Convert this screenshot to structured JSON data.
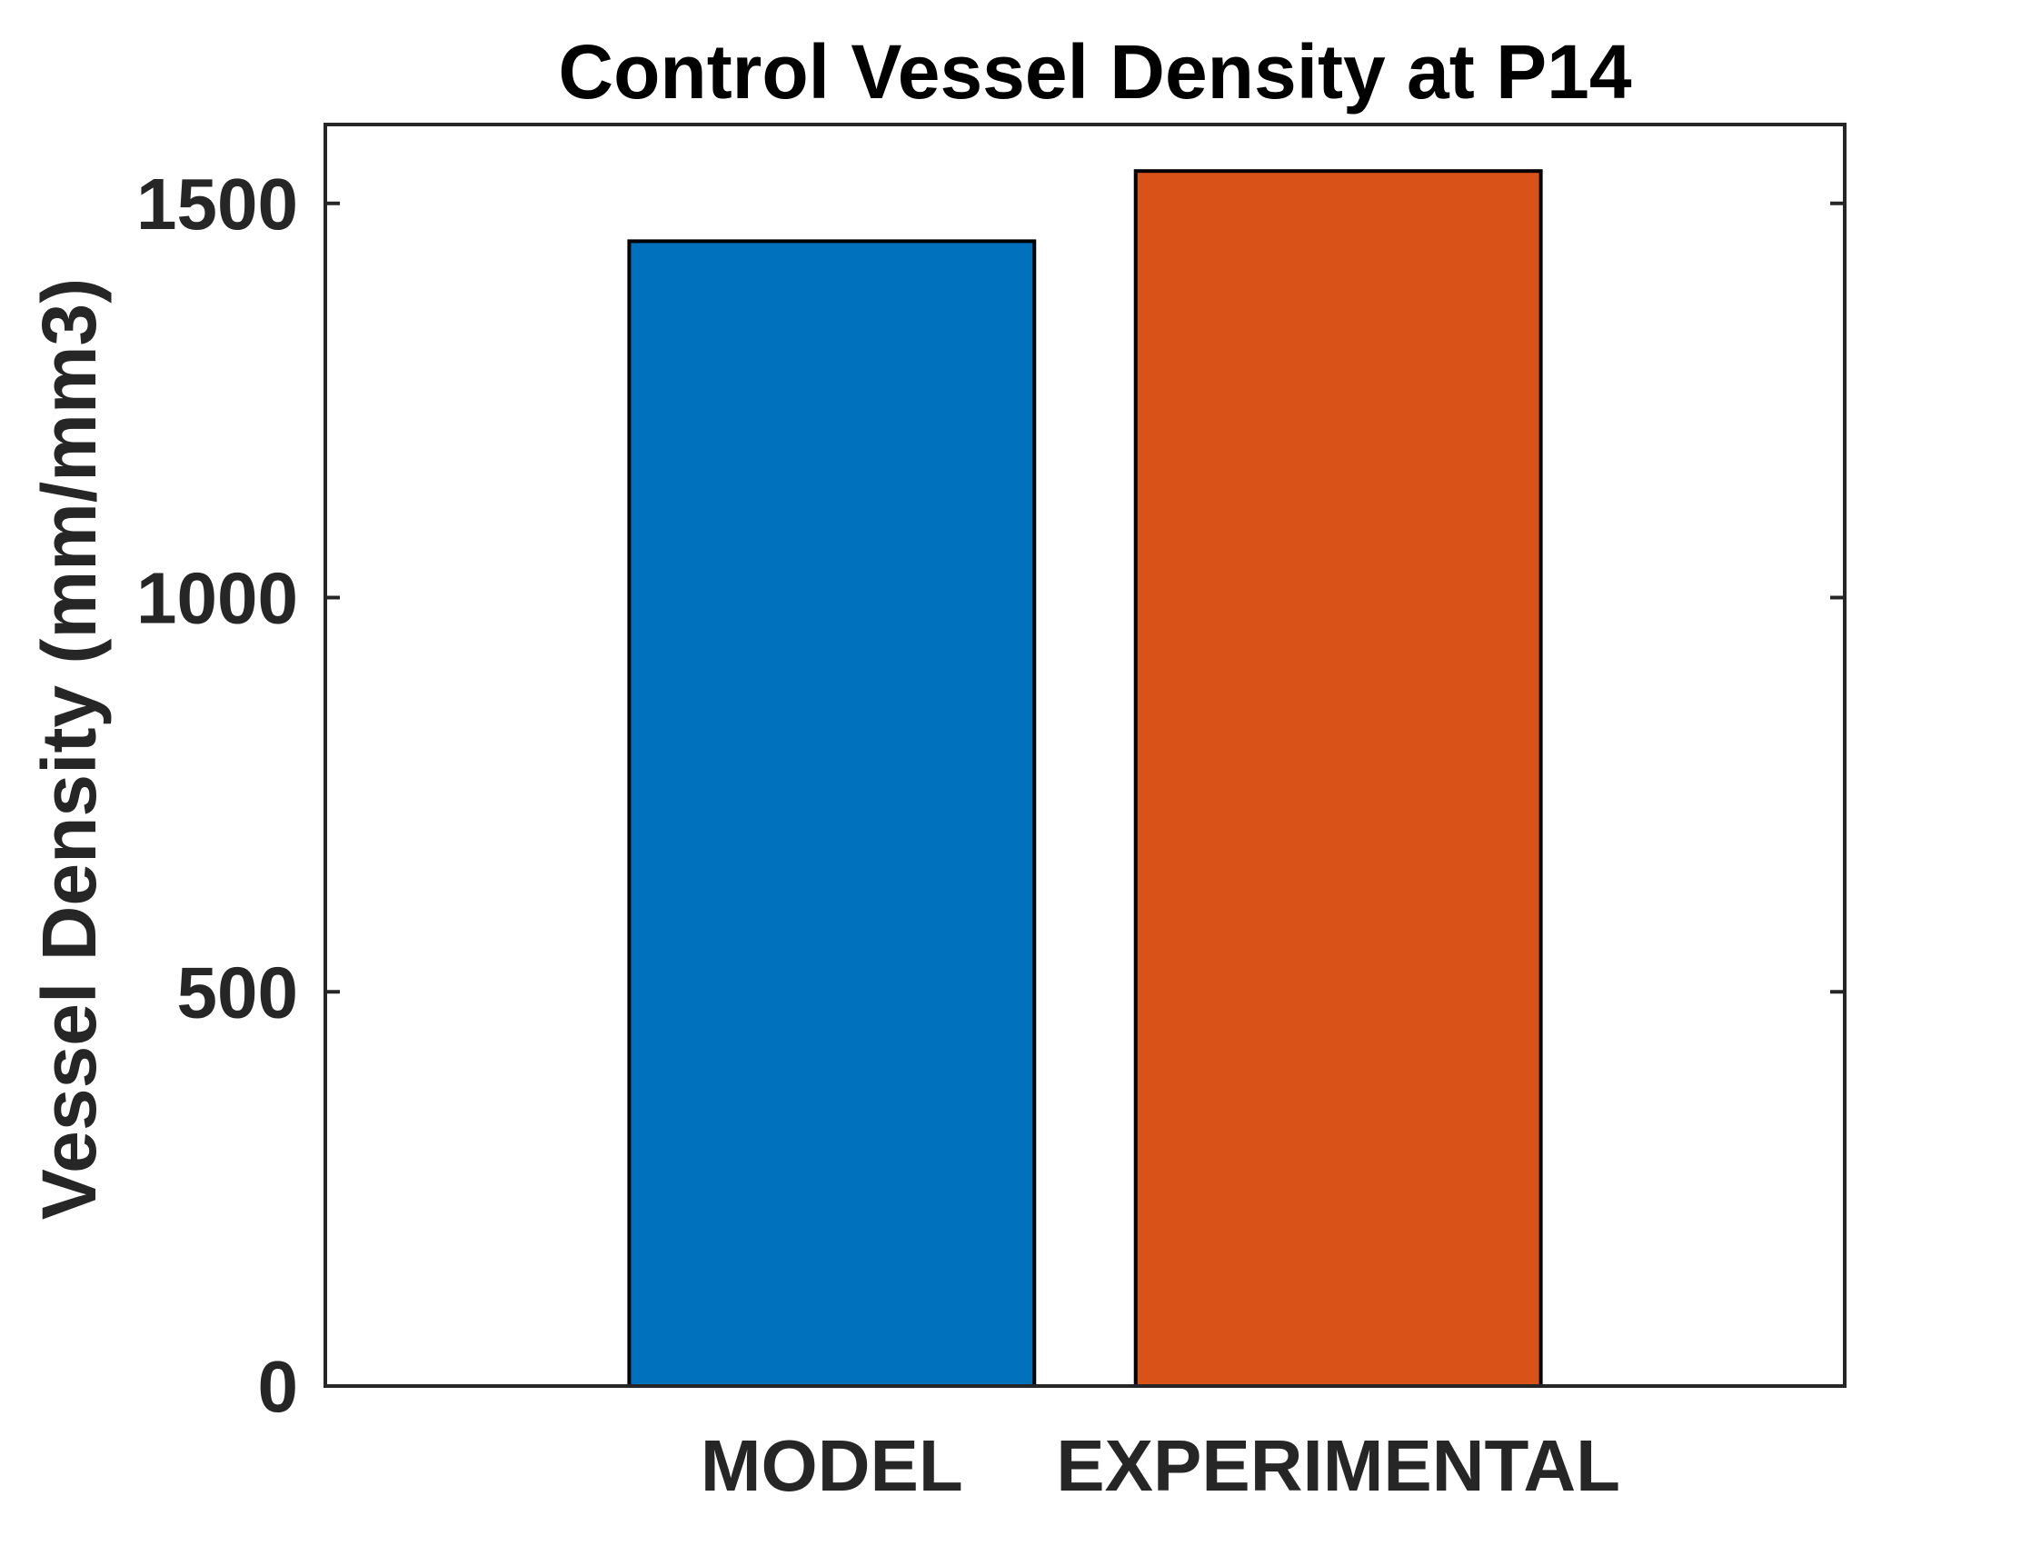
{
  "chart_data": {
    "type": "bar",
    "title": "Control Vessel Density at P14",
    "xlabel": "",
    "ylabel": "Vessel Density (mm/mm3)",
    "categories": [
      "MODEL",
      "EXPERIMENTAL"
    ],
    "values": [
      1452,
      1541
    ],
    "bar_colors": [
      "#0072BD",
      "#D95319"
    ],
    "edge_color": "#000000",
    "axis_color": "#262626",
    "ylim": [
      0,
      1600
    ],
    "xlim": [
      0,
      3
    ],
    "yticks": [
      0,
      500,
      1000,
      1500
    ],
    "ytick_labels": [
      "0",
      "500",
      "1000",
      "1500"
    ],
    "grid": false,
    "legend": "none"
  }
}
